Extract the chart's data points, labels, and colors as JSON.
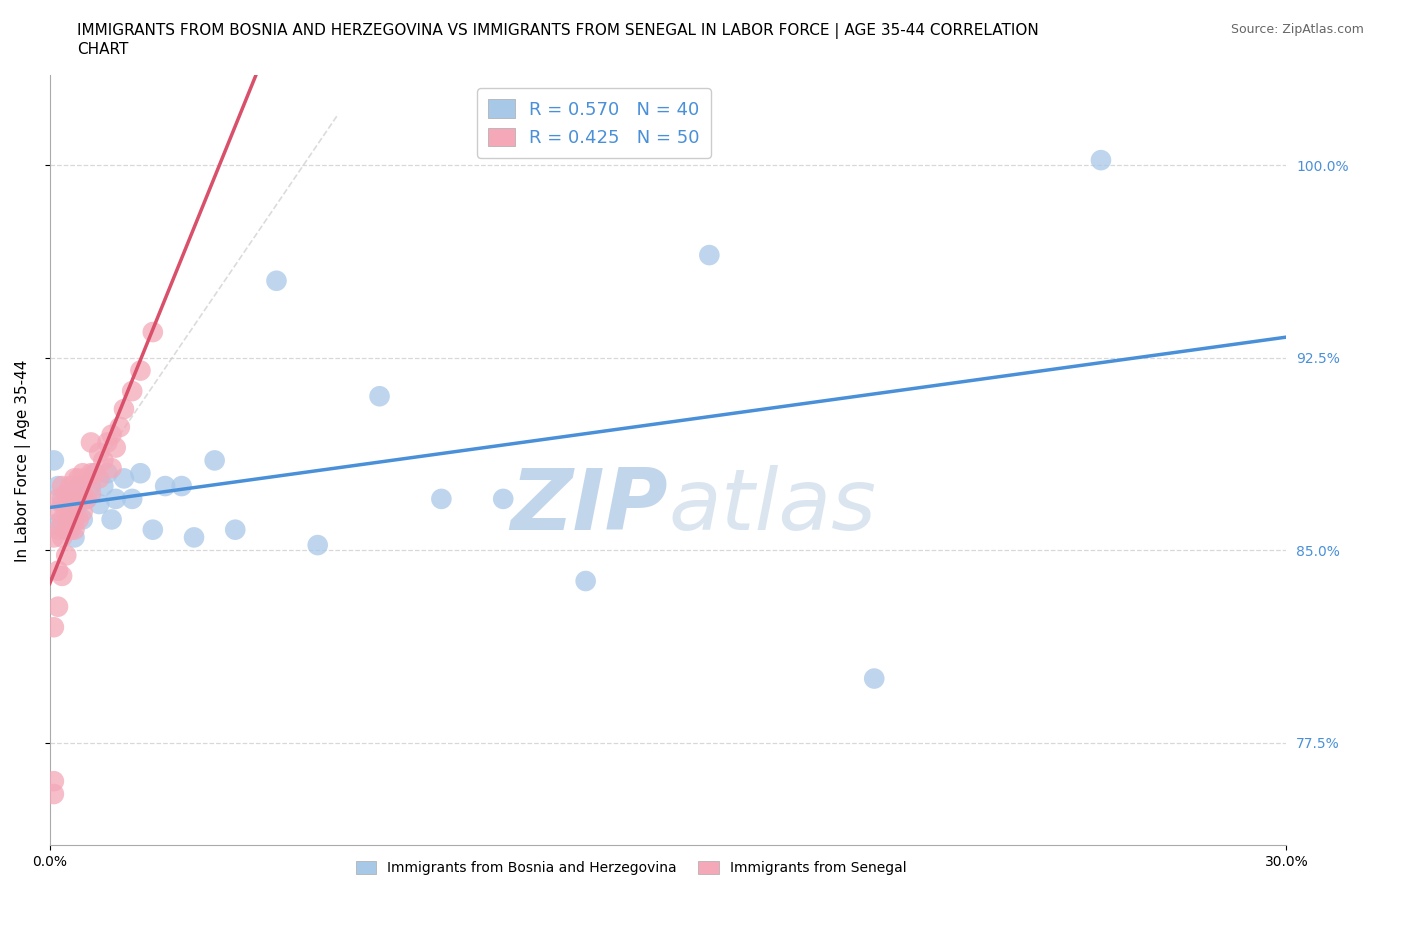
{
  "title_line1": "IMMIGRANTS FROM BOSNIA AND HERZEGOVINA VS IMMIGRANTS FROM SENEGAL IN LABOR FORCE | AGE 35-44 CORRELATION",
  "title_line2": "CHART",
  "source": "Source: ZipAtlas.com",
  "ylabel": "In Labor Force | Age 35-44",
  "x_min": 0.0,
  "x_max": 0.3,
  "y_min": 0.735,
  "y_max": 1.035,
  "y_ticks": [
    0.775,
    0.85,
    0.925,
    1.0
  ],
  "y_tick_labels": [
    "77.5%",
    "85.0%",
    "92.5%",
    "100.0%"
  ],
  "x_ticks": [
    0.0,
    0.3
  ],
  "x_tick_labels": [
    "0.0%",
    "30.0%"
  ],
  "bosnia_color": "#a8c8e8",
  "senegal_color": "#f4a8b8",
  "bosnia_line_color": "#4a90d9",
  "senegal_line_color": "#d9506a",
  "diagonal_line_color": "#cccccc",
  "R_bosnia": 0.57,
  "N_bosnia": 40,
  "R_senegal": 0.425,
  "N_senegal": 50,
  "watermark_zip": "ZIP",
  "watermark_atlas": "atlas",
  "watermark_color": "#d0dff0",
  "legend_label_bosnia": "Immigrants from Bosnia and Herzegovina",
  "legend_label_senegal": "Immigrants from Senegal",
  "bosnia_x": [
    0.001,
    0.001,
    0.002,
    0.003,
    0.003,
    0.004,
    0.005,
    0.005,
    0.006,
    0.006,
    0.007,
    0.007,
    0.008,
    0.008,
    0.009,
    0.01,
    0.011,
    0.012,
    0.013,
    0.014,
    0.015,
    0.016,
    0.018,
    0.02,
    0.022,
    0.025,
    0.028,
    0.032,
    0.035,
    0.04,
    0.045,
    0.055,
    0.065,
    0.08,
    0.095,
    0.11,
    0.13,
    0.16,
    0.2,
    0.255
  ],
  "bosnia_y": [
    0.86,
    0.885,
    0.875,
    0.86,
    0.87,
    0.858,
    0.865,
    0.862,
    0.87,
    0.855,
    0.875,
    0.868,
    0.862,
    0.875,
    0.87,
    0.875,
    0.88,
    0.868,
    0.875,
    0.88,
    0.862,
    0.87,
    0.878,
    0.87,
    0.88,
    0.858,
    0.875,
    0.875,
    0.855,
    0.885,
    0.858,
    0.955,
    0.852,
    0.91,
    0.87,
    0.87,
    0.838,
    0.965,
    0.8,
    1.002
  ],
  "senegal_x": [
    0.001,
    0.001,
    0.001,
    0.001,
    0.002,
    0.002,
    0.002,
    0.002,
    0.002,
    0.003,
    0.003,
    0.003,
    0.003,
    0.003,
    0.004,
    0.004,
    0.004,
    0.004,
    0.005,
    0.005,
    0.005,
    0.005,
    0.006,
    0.006,
    0.006,
    0.006,
    0.007,
    0.007,
    0.007,
    0.008,
    0.008,
    0.008,
    0.009,
    0.009,
    0.01,
    0.01,
    0.01,
    0.011,
    0.012,
    0.012,
    0.013,
    0.014,
    0.015,
    0.015,
    0.016,
    0.017,
    0.018,
    0.02,
    0.022,
    0.025
  ],
  "senegal_y": [
    0.755,
    0.76,
    0.82,
    0.855,
    0.828,
    0.842,
    0.858,
    0.865,
    0.87,
    0.84,
    0.855,
    0.862,
    0.868,
    0.875,
    0.848,
    0.858,
    0.865,
    0.872,
    0.858,
    0.862,
    0.868,
    0.875,
    0.858,
    0.862,
    0.868,
    0.878,
    0.862,
    0.87,
    0.878,
    0.865,
    0.872,
    0.88,
    0.87,
    0.878,
    0.872,
    0.88,
    0.892,
    0.88,
    0.878,
    0.888,
    0.885,
    0.892,
    0.882,
    0.895,
    0.89,
    0.898,
    0.905,
    0.912,
    0.92,
    0.935
  ],
  "grid_color": "#d8d8d8",
  "title_fontsize": 11,
  "axis_label_fontsize": 11,
  "tick_fontsize": 10,
  "legend_fontsize": 13,
  "right_tick_color": "#4a90d9"
}
